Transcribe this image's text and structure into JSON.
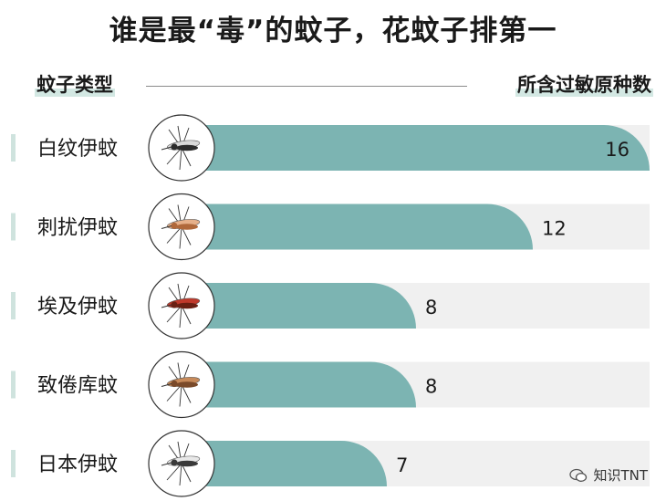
{
  "title": "谁是最“毒”的蚊子，花蚊子排第一",
  "header": {
    "left": "蚊子类型",
    "right": "所含过敏原种数"
  },
  "watermark": "知识TNT",
  "colors": {
    "bar": "#7cb4b2",
    "track": "#f0f0f0",
    "tick": "#cfe3de",
    "circle_stroke": "#333333"
  },
  "chart_data": {
    "type": "bar",
    "orientation": "horizontal",
    "categories": [
      "白纹伊蚊",
      "刺扰伊蚊",
      "埃及伊蚊",
      "致倦库蚊",
      "日本伊蚊"
    ],
    "values": [
      16,
      12,
      8,
      8,
      7
    ],
    "xlim": [
      0,
      16
    ],
    "icons": [
      "mosquito-icon",
      "mosquito-icon",
      "mosquito-icon",
      "mosquito-icon",
      "mosquito-icon"
    ],
    "title": "谁是最“毒”的蚊子，花蚊子排第一",
    "xlabel": "所含过敏原种数",
    "ylabel": "蚊子类型"
  }
}
